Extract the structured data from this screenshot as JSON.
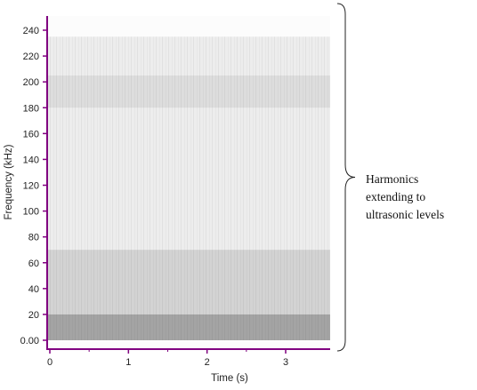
{
  "chart_data": {
    "type": "heatmap",
    "title": "",
    "xlabel": "Time (s)",
    "ylabel": "Frequency (kHz)",
    "xlim": [
      0,
      3.5
    ],
    "ylim": [
      0,
      250
    ],
    "x_ticks": [
      0,
      1,
      2,
      3
    ],
    "x_tick_labels": [
      "0",
      "1",
      "2",
      "3"
    ],
    "y_ticks": [
      0,
      20,
      40,
      60,
      80,
      100,
      120,
      140,
      160,
      180,
      200,
      220,
      240
    ],
    "y_tick_labels": [
      "0.00",
      "20",
      "40",
      "60",
      "80",
      "100",
      "120",
      "140",
      "160",
      "180",
      "200",
      "220",
      "240"
    ],
    "grid": false,
    "colormap": "grayscale (light = low energy, dark = high energy)",
    "notable_bands_kHz": [
      {
        "from": 0,
        "to": 20,
        "level": "high"
      },
      {
        "from": 20,
        "to": 70,
        "level": "medium"
      },
      {
        "from": 70,
        "to": 180,
        "level": "low"
      },
      {
        "from": 180,
        "to": 205,
        "level": "medium-low"
      },
      {
        "from": 205,
        "to": 235,
        "level": "low"
      }
    ],
    "annotations": [
      {
        "text_lines": [
          "Harmonics",
          "extending to",
          "ultrasonic levels"
        ],
        "spans_kHz": [
          0,
          250
        ],
        "marker": "right curly brace"
      }
    ],
    "colors": {
      "axis": "#800080",
      "zero_label": "#1a3fc7",
      "ink": "#222222"
    }
  }
}
